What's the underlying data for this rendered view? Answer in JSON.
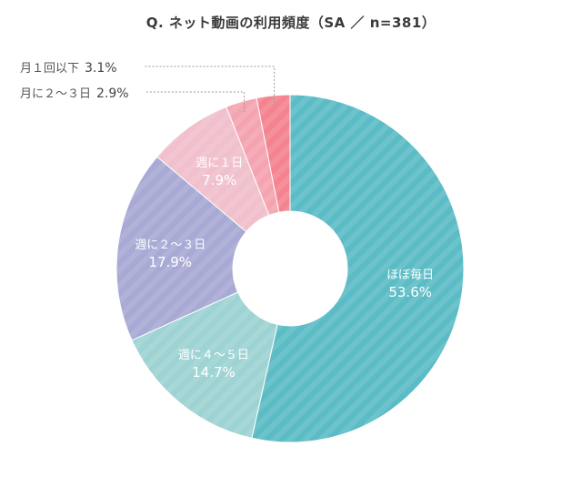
{
  "chart_data": {
    "type": "pie",
    "title": "Q. ネット動画の利用頻度（SA ／ n=381）",
    "donut": true,
    "slices": [
      {
        "label": "ほぼ毎日",
        "value": 53.6,
        "display": "53.6%",
        "color": "#5cbcc5"
      },
      {
        "label": "週に４～５日",
        "value": 14.7,
        "display": "14.7%",
        "color": "#9ed3d3"
      },
      {
        "label": "週に２～３日",
        "value": 17.9,
        "display": "17.9%",
        "color": "#a8a9d4"
      },
      {
        "label": "週に１日",
        "value": 7.9,
        "display": "7.9%",
        "color": "#f0c0cc"
      },
      {
        "label": "月に２～３日",
        "value": 2.9,
        "display": "2.9%",
        "color": "#f4a4b0"
      },
      {
        "label": "月１回以下",
        "value": 3.1,
        "display": "3.1%",
        "color": "#f4838f"
      }
    ]
  }
}
